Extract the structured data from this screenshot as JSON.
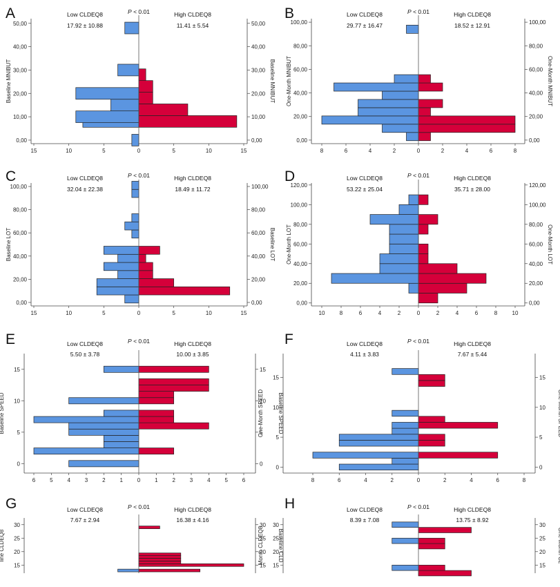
{
  "colors": {
    "low": "#5b95e0",
    "high": "#d5003a"
  },
  "chart_data": [
    {
      "type": "bar",
      "panel": "A",
      "left_header": "Low CLDEQ8",
      "right_header": "High CLDEQ8",
      "p_prefix": "P",
      "p_suffix": " < 0.01",
      "left_stat": "17.92 ± 10.88",
      "right_stat": "11.41 ± 5.54",
      "left_axis_label": "Baseline MNIBUT",
      "right_axis_label": "Baseline MNIBUT",
      "y_ticks": [
        "0,00",
        "10,00",
        "20,00",
        "30,00",
        "40,00",
        "50,00"
      ],
      "y_tick_values": [
        0,
        10,
        20,
        30,
        40,
        50
      ],
      "ylim": [
        -1.5,
        52
      ],
      "bin_width": 5,
      "x_ticks": [
        15,
        10,
        5,
        0,
        5,
        10,
        15
      ],
      "xlim": 15,
      "low": [
        {
          "bin": 0,
          "count": 1
        },
        {
          "bin": 8,
          "count": 8
        },
        {
          "bin": 10,
          "count": 9
        },
        {
          "bin": 15,
          "count": 4
        },
        {
          "bin": 20,
          "count": 9
        },
        {
          "bin": 30,
          "count": 3
        },
        {
          "bin": 48,
          "count": 2
        }
      ],
      "high": [
        {
          "bin": 8,
          "count": 14
        },
        {
          "bin": 13,
          "count": 7
        },
        {
          "bin": 18,
          "count": 2
        },
        {
          "bin": 23,
          "count": 2
        },
        {
          "bin": 28,
          "count": 1
        }
      ]
    },
    {
      "type": "bar",
      "panel": "B",
      "left_header": "Low CLDEQ8",
      "right_header": "High CLDEQ8",
      "p_prefix": "P",
      "p_suffix": " < 0.01",
      "left_stat": "29.77 ± 16.47",
      "right_stat": "18.52 ± 12.91",
      "left_axis_label": "One-Month MNIBUT",
      "right_axis_label": "One-Month MNIBUT",
      "y_ticks": [
        "0,00",
        "20,00",
        "40,00",
        "60,00",
        "80,00",
        "100,00"
      ],
      "y_tick_values": [
        0,
        20,
        40,
        60,
        80,
        100
      ],
      "ylim": [
        -3,
        103
      ],
      "bin_width": 7,
      "x_ticks": [
        8,
        6,
        4,
        2,
        0,
        2,
        4,
        6,
        8
      ],
      "xlim": 8,
      "low": [
        {
          "bin": 3,
          "count": 1
        },
        {
          "bin": 10,
          "count": 3
        },
        {
          "bin": 17,
          "count": 8
        },
        {
          "bin": 24,
          "count": 5
        },
        {
          "bin": 31,
          "count": 5
        },
        {
          "bin": 38,
          "count": 3
        },
        {
          "bin": 45,
          "count": 7
        },
        {
          "bin": 52,
          "count": 2
        },
        {
          "bin": 94,
          "count": 1
        }
      ],
      "high": [
        {
          "bin": 3,
          "count": 1
        },
        {
          "bin": 10,
          "count": 8
        },
        {
          "bin": 17,
          "count": 8
        },
        {
          "bin": 24,
          "count": 1
        },
        {
          "bin": 31,
          "count": 2
        },
        {
          "bin": 45,
          "count": 2
        },
        {
          "bin": 52,
          "count": 1
        }
      ]
    },
    {
      "type": "bar",
      "panel": "C",
      "left_header": "Low CLDEQ8",
      "right_header": "High CLDEQ8",
      "p_prefix": "P",
      "p_suffix": " < 0.01",
      "left_stat": "32.04 ± 22.38",
      "right_stat": "18.49 ± 11.72",
      "left_axis_label": "Baseline LOT",
      "right_axis_label": "Baseline LOT",
      "y_ticks": [
        "0,00",
        "20,00",
        "40,00",
        "60,00",
        "80,00",
        "100,00"
      ],
      "y_tick_values": [
        0,
        20,
        40,
        60,
        80,
        100
      ],
      "ylim": [
        -3,
        103
      ],
      "bin_width": 7,
      "x_ticks": [
        15,
        10,
        5,
        0,
        5,
        10,
        15
      ],
      "xlim": 15,
      "low": [
        {
          "bin": 3,
          "count": 2
        },
        {
          "bin": 10,
          "count": 6
        },
        {
          "bin": 17,
          "count": 6
        },
        {
          "bin": 24,
          "count": 3
        },
        {
          "bin": 31,
          "count": 5
        },
        {
          "bin": 38,
          "count": 3
        },
        {
          "bin": 45,
          "count": 5
        },
        {
          "bin": 59,
          "count": 1
        },
        {
          "bin": 66,
          "count": 2
        },
        {
          "bin": 73,
          "count": 1
        },
        {
          "bin": 94,
          "count": 1
        },
        {
          "bin": 101,
          "count": 1
        }
      ],
      "high": [
        {
          "bin": 10,
          "count": 13
        },
        {
          "bin": 17,
          "count": 5
        },
        {
          "bin": 24,
          "count": 2
        },
        {
          "bin": 31,
          "count": 2
        },
        {
          "bin": 38,
          "count": 1
        },
        {
          "bin": 45,
          "count": 3
        }
      ]
    },
    {
      "type": "bar",
      "panel": "D",
      "left_header": "Low CLDEQ8",
      "right_header": "High CLDEQ8",
      "p_prefix": "P",
      "p_suffix": " < 0.01",
      "left_stat": "53.22 ± 25.04",
      "right_stat": "35.71 ± 28.00",
      "left_axis_label": "One-Month LOT",
      "right_axis_label": "One-Month LOT",
      "y_ticks": [
        "0,00",
        "20,00",
        "40,00",
        "60,00",
        "80,00",
        "100,00",
        "120,00"
      ],
      "y_tick_values": [
        0,
        20,
        40,
        60,
        80,
        100,
        120
      ],
      "ylim": [
        -3,
        122
      ],
      "bin_width": 10,
      "x_ticks": [
        10,
        8,
        6,
        4,
        2,
        0,
        2,
        4,
        6,
        8,
        10
      ],
      "xlim": 10,
      "low": [
        {
          "bin": 15,
          "count": 1
        },
        {
          "bin": 25,
          "count": 9
        },
        {
          "bin": 35,
          "count": 4
        },
        {
          "bin": 45,
          "count": 4
        },
        {
          "bin": 55,
          "count": 3
        },
        {
          "bin": 65,
          "count": 3
        },
        {
          "bin": 75,
          "count": 3
        },
        {
          "bin": 85,
          "count": 5
        },
        {
          "bin": 95,
          "count": 2
        },
        {
          "bin": 105,
          "count": 1
        }
      ],
      "high": [
        {
          "bin": 5,
          "count": 2
        },
        {
          "bin": 15,
          "count": 5
        },
        {
          "bin": 25,
          "count": 7
        },
        {
          "bin": 35,
          "count": 4
        },
        {
          "bin": 45,
          "count": 1
        },
        {
          "bin": 55,
          "count": 1
        },
        {
          "bin": 75,
          "count": 1
        },
        {
          "bin": 85,
          "count": 2
        },
        {
          "bin": 105,
          "count": 1
        }
      ]
    },
    {
      "type": "bar",
      "panel": "E",
      "left_header": "Low CLDEQ8",
      "right_header": "High CLDEQ8",
      "p_prefix": "P",
      "p_suffix": " < 0.01",
      "left_stat": "5.50 ± 3.78",
      "right_stat": "10.00 ± 3.85",
      "left_axis_label": "Baseline SPEED",
      "right_axis_label": "Baseline SPEED",
      "y_ticks": [
        "0",
        "5",
        "10",
        "15"
      ],
      "y_tick_values": [
        0,
        5,
        10,
        15
      ],
      "ylim": [
        -1.5,
        17.5
      ],
      "bin_width": 1,
      "x_ticks": [
        6,
        5,
        4,
        3,
        2,
        1,
        0,
        1,
        2,
        3,
        4,
        5,
        6
      ],
      "xlim": 6,
      "low": [
        {
          "bin": 0,
          "count": 4
        },
        {
          "bin": 2,
          "count": 6
        },
        {
          "bin": 3,
          "count": 2
        },
        {
          "bin": 4,
          "count": 2
        },
        {
          "bin": 5,
          "count": 4
        },
        {
          "bin": 6,
          "count": 4
        },
        {
          "bin": 7,
          "count": 6
        },
        {
          "bin": 8,
          "count": 2
        },
        {
          "bin": 10,
          "count": 4
        },
        {
          "bin": 15,
          "count": 2
        }
      ],
      "high": [
        {
          "bin": 2,
          "count": 2
        },
        {
          "bin": 6,
          "count": 4
        },
        {
          "bin": 7,
          "count": 2
        },
        {
          "bin": 8,
          "count": 2
        },
        {
          "bin": 10,
          "count": 2
        },
        {
          "bin": 11,
          "count": 2
        },
        {
          "bin": 12,
          "count": 4
        },
        {
          "bin": 13,
          "count": 4
        },
        {
          "bin": 15,
          "count": 4
        }
      ]
    },
    {
      "type": "bar",
      "panel": "F",
      "left_header": "Low CLDEQ8",
      "right_header": "High CLDEQ8",
      "p_prefix": "P",
      "p_suffix": " < 0.01",
      "left_stat": "4.11 ± 3.83",
      "right_stat": "7.67 ± 5.44",
      "left_axis_label": "One-Month SPEED",
      "right_axis_label": "One-Month SPEED",
      "y_ticks": [
        "0",
        "5",
        "10",
        "15"
      ],
      "y_tick_values": [
        0,
        5,
        10,
        15
      ],
      "ylim": [
        -1,
        19
      ],
      "bin_width": 1,
      "x_ticks": [
        8,
        6,
        4,
        2,
        0,
        2,
        4,
        6,
        8
      ],
      "xlim": 8,
      "low": [
        {
          "bin": 0,
          "count": 6
        },
        {
          "bin": 1,
          "count": 2
        },
        {
          "bin": 2,
          "count": 8
        },
        {
          "bin": 4,
          "count": 6
        },
        {
          "bin": 5,
          "count": 6
        },
        {
          "bin": 6,
          "count": 2
        },
        {
          "bin": 7,
          "count": 2
        },
        {
          "bin": 9,
          "count": 2
        },
        {
          "bin": 16,
          "count": 2
        }
      ],
      "high": [
        {
          "bin": 2,
          "count": 6
        },
        {
          "bin": 4,
          "count": 2
        },
        {
          "bin": 5,
          "count": 2
        },
        {
          "bin": 7,
          "count": 6
        },
        {
          "bin": 8,
          "count": 2
        },
        {
          "bin": 14,
          "count": 2
        },
        {
          "bin": 15,
          "count": 2
        }
      ]
    },
    {
      "type": "bar",
      "panel": "G",
      "left_header": "Low CLDEQ8",
      "right_header": "High CLDEQ8",
      "p_prefix": "P",
      "p_suffix": " < 0.01",
      "left_stat": "7.67 ± 2.94",
      "right_stat": "16.38 ± 4.16",
      "left_axis_label": "line CLDEQ8",
      "right_axis_label": "Baseline CLD",
      "y_ticks": [
        "15",
        "20",
        "25",
        "30"
      ],
      "y_tick_values": [
        15,
        20,
        25,
        30
      ],
      "ylim": [
        12,
        32.5
      ],
      "bin_width": 1,
      "x_ticks": [],
      "xlim": 6,
      "low": [
        {
          "bin": 13,
          "count": 1.2
        }
      ],
      "high": [
        {
          "bin": 13,
          "count": 3.5
        },
        {
          "bin": 15,
          "count": 6
        },
        {
          "bin": 16,
          "count": 2.4
        },
        {
          "bin": 17,
          "count": 2.4
        },
        {
          "bin": 18,
          "count": 2.4
        },
        {
          "bin": 19,
          "count": 2.4
        },
        {
          "bin": 29,
          "count": 1.2
        }
      ]
    },
    {
      "type": "bar",
      "panel": "H",
      "left_header": "Low CLDEQ8",
      "right_header": "High CLDEQ8",
      "p_prefix": "P",
      "p_suffix": " < 0.01",
      "left_stat": "8.39 ± 7.08",
      "right_stat": "13.75 ± 8.92",
      "left_axis_label": "Month CLDEQ8",
      "right_axis_label": "One-Month CL",
      "y_ticks": [
        "15",
        "20",
        "25",
        "30"
      ],
      "y_tick_values": [
        15,
        20,
        25,
        30
      ],
      "ylim": [
        12,
        32.5
      ],
      "bin_width": 2,
      "x_ticks": [],
      "xlim": 8,
      "low": [
        {
          "bin": 14,
          "count": 2
        },
        {
          "bin": 24,
          "count": 2
        },
        {
          "bin": 30,
          "count": 2
        }
      ],
      "high": [
        {
          "bin": 12,
          "count": 4
        },
        {
          "bin": 14,
          "count": 2
        },
        {
          "bin": 22,
          "count": 2
        },
        {
          "bin": 24,
          "count": 2
        },
        {
          "bin": 28,
          "count": 4
        }
      ]
    }
  ]
}
